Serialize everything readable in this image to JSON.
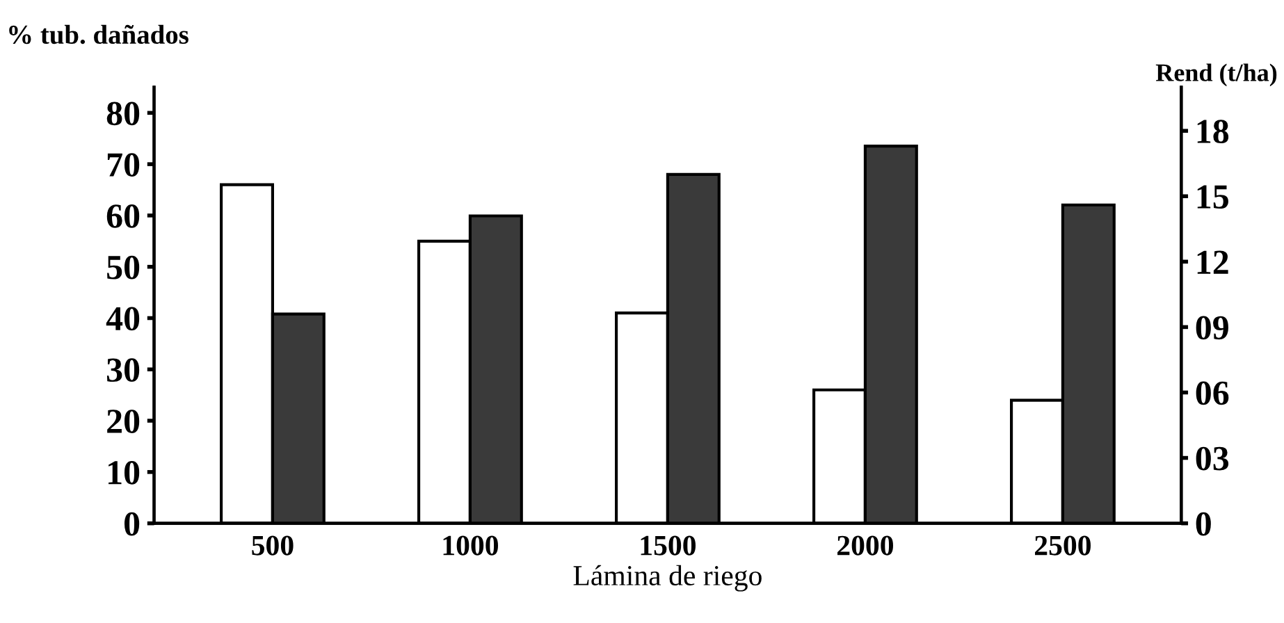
{
  "chart_data": {
    "type": "bar",
    "xlabel": "Lámina de riego",
    "ylabel": "% tub. dañados",
    "y2label": "Rend (t/ha)",
    "categories": [
      "500",
      "1000",
      "1500",
      "2000",
      "2500"
    ],
    "series": [
      {
        "color": "#ffffff",
        "values": [
          66,
          55,
          41,
          26,
          24
        ]
      },
      {
        "color": "#3a3a3a",
        "axis": "y2",
        "values": [
          9.6,
          14.1,
          16.0,
          17.3,
          14.6
        ]
      }
    ],
    "ylim": [
      0,
      85
    ],
    "yticks": [
      0,
      10,
      20,
      30,
      40,
      50,
      60,
      70,
      80
    ],
    "y2lim": [
      0,
      20
    ],
    "y2ticks": [
      0,
      {
        "value": 3,
        "label": "03"
      },
      {
        "value": 6,
        "label": "06"
      },
      {
        "value": 9,
        "label": "09"
      },
      12,
      15,
      18
    ],
    "grid": false,
    "legend": false
  }
}
